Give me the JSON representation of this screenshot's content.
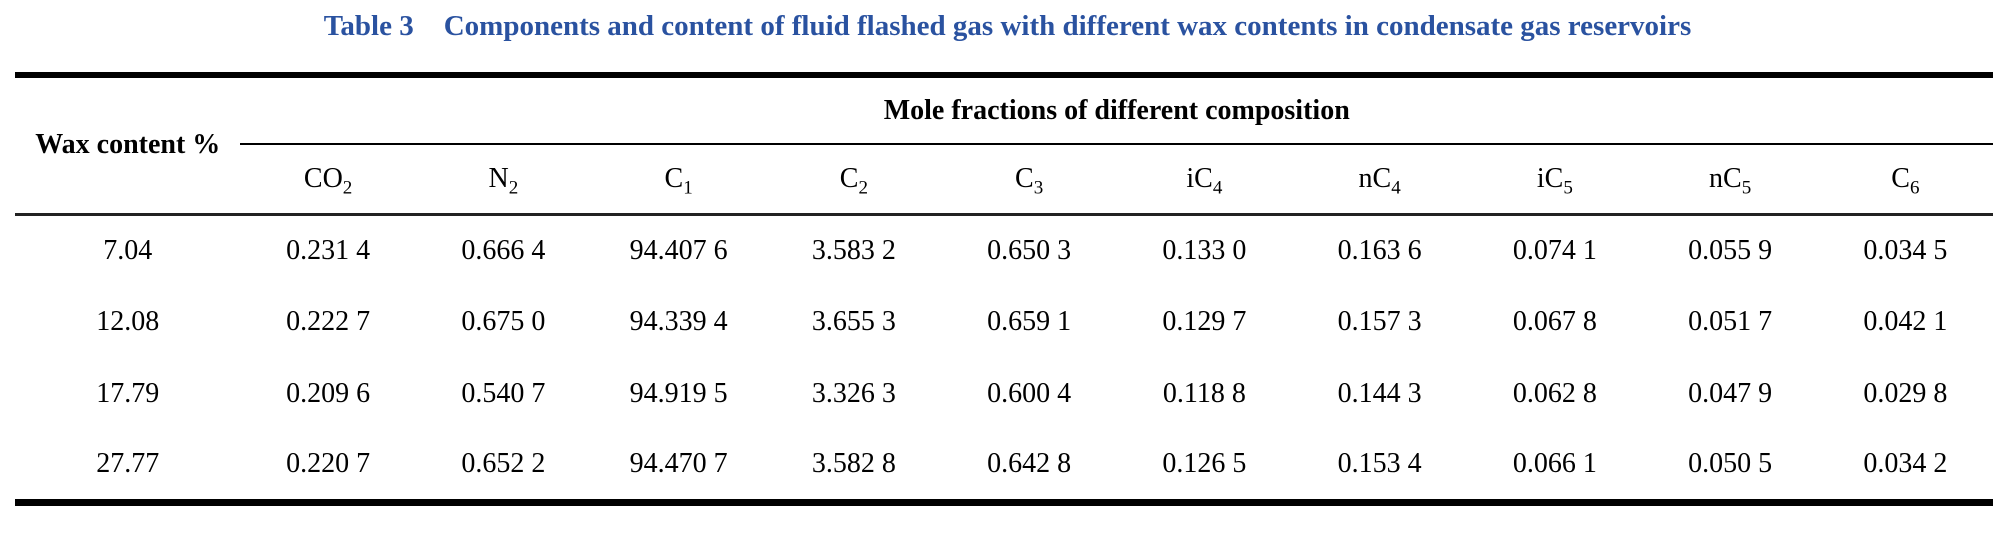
{
  "title": {
    "label": "Table 3",
    "text": "Components and content of fluid flashed gas with different wax contents in condensate gas reservoirs"
  },
  "colors": {
    "title_blue": "#2a52a0",
    "rule_black": "#000000"
  },
  "table": {
    "row_header": "Wax content %",
    "group_header": "Mole fractions of different composition",
    "columns": [
      {
        "id": "co2",
        "base": "CO",
        "sub": "2"
      },
      {
        "id": "n2",
        "base": "N",
        "sub": "2"
      },
      {
        "id": "c1",
        "base": "C",
        "sub": "1"
      },
      {
        "id": "c2",
        "base": "C",
        "sub": "2"
      },
      {
        "id": "c3",
        "base": "C",
        "sub": "3"
      },
      {
        "id": "ic4",
        "base": "iC",
        "sub": "4"
      },
      {
        "id": "nc4",
        "base": "nC",
        "sub": "4"
      },
      {
        "id": "ic5",
        "base": "iC",
        "sub": "5"
      },
      {
        "id": "nc5",
        "base": "nC",
        "sub": "5"
      },
      {
        "id": "c6",
        "base": "C",
        "sub": "6"
      }
    ],
    "rows": [
      {
        "wax": "7.04",
        "cells": [
          "0.231 4",
          "0.666 4",
          "94.407 6",
          "3.583 2",
          "0.650 3",
          "0.133 0",
          "0.163 6",
          "0.074 1",
          "0.055 9",
          "0.034 5"
        ]
      },
      {
        "wax": "12.08",
        "cells": [
          "0.222 7",
          "0.675 0",
          "94.339 4",
          "3.655 3",
          "0.659 1",
          "0.129 7",
          "0.157 3",
          "0.067 8",
          "0.051 7",
          "0.042 1"
        ]
      },
      {
        "wax": "17.79",
        "cells": [
          "0.209 6",
          "0.540 7",
          "94.919 5",
          "3.326 3",
          "0.600 4",
          "0.118 8",
          "0.144 3",
          "0.062 8",
          "0.047 9",
          "0.029 8"
        ]
      },
      {
        "wax": "27.77",
        "cells": [
          "0.220 7",
          "0.652 2",
          "94.470 7",
          "3.582 8",
          "0.642 8",
          "0.126 5",
          "0.153 4",
          "0.066 1",
          "0.050 5",
          "0.034 2"
        ]
      }
    ]
  }
}
